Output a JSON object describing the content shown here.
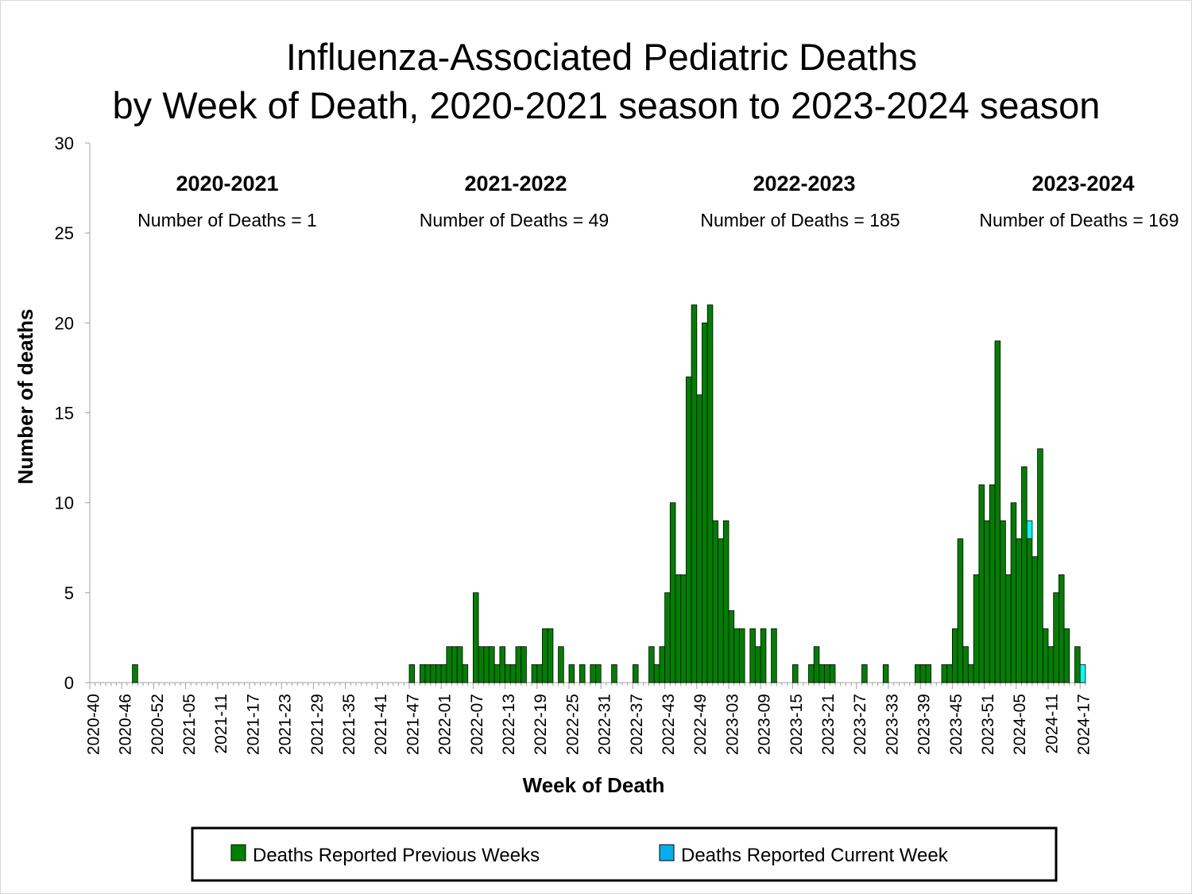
{
  "chart_data": {
    "type": "bar",
    "stacked": true,
    "title": [
      "Influenza-Associated Pediatric Deaths",
      "by Week of Death, 2020-2021 season to 2023-2024 season"
    ],
    "xlabel": "Week of Death",
    "ylabel": "Number of deaths",
    "ylim": [
      0,
      30
    ],
    "yticks": [
      0,
      5,
      10,
      15,
      20,
      25,
      30
    ],
    "grid": false,
    "legend_position": "bottom",
    "colors": {
      "previous": "#008000",
      "current": "#00FFFF",
      "axis": "#A0A0A0"
    },
    "x_tick_labels": [
      "2020-40",
      "2020-46",
      "2020-52",
      "2021-05",
      "2021-11",
      "2021-17",
      "2021-23",
      "2021-29",
      "2021-35",
      "2021-41",
      "2021-47",
      "2022-01",
      "2022-07",
      "2022-13",
      "2022-19",
      "2022-25",
      "2022-31",
      "2022-37",
      "2022-43",
      "2022-49",
      "2023-03",
      "2023-09",
      "2023-15",
      "2023-21",
      "2023-27",
      "2023-33",
      "2023-39",
      "2023-45",
      "2023-51",
      "2024-05",
      "2024-11",
      "2024-17"
    ],
    "categories": [
      "2020-40",
      "2020-41",
      "2020-42",
      "2020-43",
      "2020-44",
      "2020-45",
      "2020-46",
      "2020-47",
      "2020-48",
      "2020-49",
      "2020-50",
      "2020-51",
      "2020-52",
      "2020-53",
      "2021-01",
      "2021-02",
      "2021-03",
      "2021-04",
      "2021-05",
      "2021-06",
      "2021-07",
      "2021-08",
      "2021-09",
      "2021-10",
      "2021-11",
      "2021-12",
      "2021-13",
      "2021-14",
      "2021-15",
      "2021-16",
      "2021-17",
      "2021-18",
      "2021-19",
      "2021-20",
      "2021-21",
      "2021-22",
      "2021-23",
      "2021-24",
      "2021-25",
      "2021-26",
      "2021-27",
      "2021-28",
      "2021-29",
      "2021-30",
      "2021-31",
      "2021-32",
      "2021-33",
      "2021-34",
      "2021-35",
      "2021-36",
      "2021-37",
      "2021-38",
      "2021-39",
      "2021-40",
      "2021-41",
      "2021-42",
      "2021-43",
      "2021-44",
      "2021-45",
      "2021-46",
      "2021-47",
      "2021-48",
      "2021-49",
      "2021-50",
      "2021-51",
      "2021-52",
      "2022-01",
      "2022-02",
      "2022-03",
      "2022-04",
      "2022-05",
      "2022-06",
      "2022-07",
      "2022-08",
      "2022-09",
      "2022-10",
      "2022-11",
      "2022-12",
      "2022-13",
      "2022-14",
      "2022-15",
      "2022-16",
      "2022-17",
      "2022-18",
      "2022-19",
      "2022-20",
      "2022-21",
      "2022-22",
      "2022-23",
      "2022-24",
      "2022-25",
      "2022-26",
      "2022-27",
      "2022-28",
      "2022-29",
      "2022-30",
      "2022-31",
      "2022-32",
      "2022-33",
      "2022-34",
      "2022-35",
      "2022-36",
      "2022-37",
      "2022-38",
      "2022-39",
      "2022-40",
      "2022-41",
      "2022-42",
      "2022-43",
      "2022-44",
      "2022-45",
      "2022-46",
      "2022-47",
      "2022-48",
      "2022-49",
      "2022-50",
      "2022-51",
      "2022-52",
      "2023-01",
      "2023-02",
      "2023-03",
      "2023-04",
      "2023-05",
      "2023-06",
      "2023-07",
      "2023-08",
      "2023-09",
      "2023-10",
      "2023-11",
      "2023-12",
      "2023-13",
      "2023-14",
      "2023-15",
      "2023-16",
      "2023-17",
      "2023-18",
      "2023-19",
      "2023-20",
      "2023-21",
      "2023-22",
      "2023-23",
      "2023-24",
      "2023-25",
      "2023-26",
      "2023-27",
      "2023-28",
      "2023-29",
      "2023-30",
      "2023-31",
      "2023-32",
      "2023-33",
      "2023-34",
      "2023-35",
      "2023-36",
      "2023-37",
      "2023-38",
      "2023-39",
      "2023-40",
      "2023-41",
      "2023-42",
      "2023-43",
      "2023-44",
      "2023-45",
      "2023-46",
      "2023-47",
      "2023-48",
      "2023-49",
      "2023-50",
      "2023-51",
      "2023-52",
      "2024-01",
      "2024-02",
      "2024-03",
      "2024-04",
      "2024-05",
      "2024-06",
      "2024-07",
      "2024-08",
      "2024-09",
      "2024-10",
      "2024-11",
      "2024-12",
      "2024-13",
      "2024-14",
      "2024-15",
      "2024-16",
      "2024-17"
    ],
    "series": [
      {
        "name": "Deaths Reported Previous Weeks",
        "values": [
          0,
          0,
          0,
          0,
          0,
          0,
          0,
          0,
          1,
          0,
          0,
          0,
          0,
          0,
          0,
          0,
          0,
          0,
          0,
          0,
          0,
          0,
          0,
          0,
          0,
          0,
          0,
          0,
          0,
          0,
          0,
          0,
          0,
          0,
          0,
          0,
          0,
          0,
          0,
          0,
          0,
          0,
          0,
          0,
          0,
          0,
          0,
          0,
          0,
          0,
          0,
          0,
          0,
          0,
          0,
          0,
          0,
          0,
          0,
          0,
          1,
          0,
          1,
          1,
          1,
          1,
          1,
          2,
          2,
          2,
          1,
          0,
          5,
          2,
          2,
          2,
          1,
          2,
          1,
          1,
          2,
          2,
          0,
          1,
          1,
          3,
          3,
          0,
          2,
          0,
          1,
          0,
          1,
          0,
          1,
          1,
          0,
          0,
          1,
          0,
          0,
          0,
          1,
          0,
          0,
          2,
          1,
          2,
          5,
          10,
          6,
          6,
          17,
          21,
          16,
          20,
          21,
          9,
          8,
          9,
          4,
          3,
          3,
          0,
          3,
          2,
          3,
          0,
          3,
          0,
          0,
          0,
          1,
          0,
          0,
          1,
          2,
          1,
          1,
          1,
          0,
          0,
          0,
          0,
          0,
          1,
          0,
          0,
          0,
          1,
          0,
          0,
          0,
          0,
          0,
          1,
          1,
          1,
          0,
          0,
          1,
          1,
          3,
          8,
          2,
          1,
          6,
          11,
          9,
          11,
          19,
          9,
          6,
          10,
          8,
          12,
          8,
          7,
          13,
          3,
          2,
          5,
          6,
          3,
          0,
          2,
          0
        ]
      },
      {
        "name": "Deaths Reported Current Week",
        "values": [
          0,
          0,
          0,
          0,
          0,
          0,
          0,
          0,
          0,
          0,
          0,
          0,
          0,
          0,
          0,
          0,
          0,
          0,
          0,
          0,
          0,
          0,
          0,
          0,
          0,
          0,
          0,
          0,
          0,
          0,
          0,
          0,
          0,
          0,
          0,
          0,
          0,
          0,
          0,
          0,
          0,
          0,
          0,
          0,
          0,
          0,
          0,
          0,
          0,
          0,
          0,
          0,
          0,
          0,
          0,
          0,
          0,
          0,
          0,
          0,
          0,
          0,
          0,
          0,
          0,
          0,
          0,
          0,
          0,
          0,
          0,
          0,
          0,
          0,
          0,
          0,
          0,
          0,
          0,
          0,
          0,
          0,
          0,
          0,
          0,
          0,
          0,
          0,
          0,
          0,
          0,
          0,
          0,
          0,
          0,
          0,
          0,
          0,
          0,
          0,
          0,
          0,
          0,
          0,
          0,
          0,
          0,
          0,
          0,
          0,
          0,
          0,
          0,
          0,
          0,
          0,
          0,
          0,
          0,
          0,
          0,
          0,
          0,
          0,
          0,
          0,
          0,
          0,
          0,
          0,
          0,
          0,
          0,
          0,
          0,
          0,
          0,
          0,
          0,
          0,
          0,
          0,
          0,
          0,
          0,
          0,
          0,
          0,
          0,
          0,
          0,
          0,
          0,
          0,
          0,
          0,
          0,
          0,
          0,
          0,
          0,
          0,
          0,
          0,
          0,
          0,
          0,
          0,
          0,
          0,
          0,
          0,
          0,
          0,
          0,
          0,
          1,
          0,
          0,
          0,
          0,
          0,
          0,
          0,
          0,
          0,
          1
        ]
      }
    ],
    "annotations": [
      {
        "season": "2020-2021",
        "text": "Number of Deaths = 1"
      },
      {
        "season": "2021-2022",
        "text": "Number of Deaths = 49"
      },
      {
        "season": "2022-2023",
        "text": "Number of Deaths = 185"
      },
      {
        "season": "2023-2024",
        "text": "Number of Deaths = 169"
      }
    ]
  }
}
